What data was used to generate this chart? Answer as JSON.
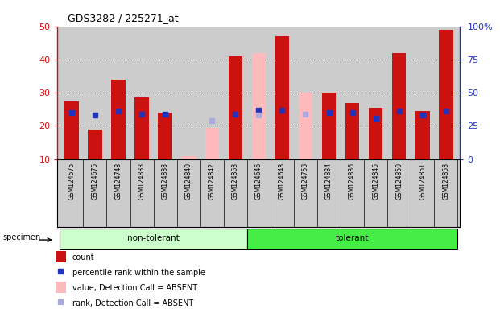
{
  "title": "GDS3282 / 225271_at",
  "samples": [
    "GSM124575",
    "GSM124675",
    "GSM124748",
    "GSM124833",
    "GSM124838",
    "GSM124840",
    "GSM124842",
    "GSM124863",
    "GSM124646",
    "GSM124648",
    "GSM124753",
    "GSM124834",
    "GSM124836",
    "GSM124845",
    "GSM124850",
    "GSM124851",
    "GSM124853"
  ],
  "count_values": [
    27.5,
    19.0,
    34.0,
    28.5,
    24.0,
    null,
    null,
    41.0,
    null,
    47.0,
    null,
    30.0,
    27.0,
    25.5,
    42.0,
    24.5,
    49.0
  ],
  "count_absent_values": [
    null,
    null,
    null,
    null,
    null,
    11.0,
    19.5,
    null,
    42.0,
    null,
    30.0,
    null,
    null,
    null,
    null,
    null,
    null
  ],
  "rank_values": [
    35,
    33,
    36,
    34,
    34,
    null,
    null,
    34,
    37,
    37,
    null,
    35,
    35,
    31,
    36,
    33,
    36
  ],
  "rank_absent_values": [
    null,
    null,
    null,
    null,
    null,
    null,
    29,
    null,
    33,
    null,
    34,
    null,
    null,
    null,
    null,
    null,
    null
  ],
  "ylim_left": [
    10,
    50
  ],
  "ylim_right": [
    0,
    100
  ],
  "yticks_left": [
    10,
    20,
    30,
    40,
    50
  ],
  "yticks_right": [
    0,
    25,
    50,
    75,
    100
  ],
  "ytick_labels_right": [
    "0",
    "25",
    "50",
    "75",
    "100%"
  ],
  "bar_color_red": "#cc1111",
  "bar_color_pink": "#ffbbbb",
  "dot_color_blue": "#2233bb",
  "dot_color_lightblue": "#aaaadd",
  "group_color_nt": "#ccffcc",
  "group_color_t": "#44ee44",
  "background_color": "#cccccc",
  "axis_left_color": "#cc1111",
  "axis_right_color": "#2233bb",
  "legend_items": [
    {
      "label": "count",
      "color": "#cc1111",
      "type": "rect"
    },
    {
      "label": "percentile rank within the sample",
      "color": "#2233bb",
      "type": "square"
    },
    {
      "label": "value, Detection Call = ABSENT",
      "color": "#ffbbbb",
      "type": "rect"
    },
    {
      "label": "rank, Detection Call = ABSENT",
      "color": "#aaaadd",
      "type": "square"
    }
  ],
  "n_nontolerant": 8,
  "n_tolerant": 9
}
